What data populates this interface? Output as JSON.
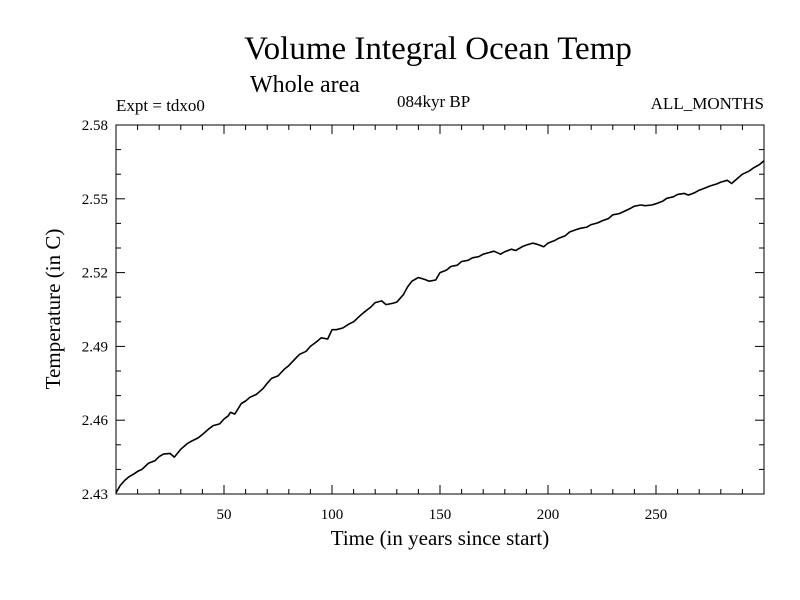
{
  "header": {
    "title": "Volume Integral Ocean Temp",
    "subtitle": "Whole area",
    "experiment": "Expt = tdxo0",
    "period": "084kyr BP",
    "months": "ALL_MONTHS"
  },
  "chart_data": {
    "type": "line",
    "title": "Volume Integral Ocean Temp",
    "subtitle": "Whole area",
    "xlabel": "Time (in years since start)",
    "ylabel": "Temperature (in C)",
    "xlim": [
      0,
      300
    ],
    "ylim": [
      2.43,
      2.58
    ],
    "x_ticks": [
      50,
      100,
      150,
      200,
      250
    ],
    "y_ticks": [
      2.43,
      2.46,
      2.49,
      2.52,
      2.55,
      2.58
    ],
    "y_tick_labels": [
      "2.43",
      "2.46",
      "2.49",
      "2.52",
      "2.55",
      "2.58"
    ],
    "grid": false,
    "line_color": "#000000",
    "series": [
      {
        "x": [
          0,
          2,
          4,
          6,
          8,
          10,
          12,
          15,
          18,
          20,
          22,
          25,
          27,
          30,
          33,
          35,
          38,
          40,
          43,
          45,
          48,
          50,
          52,
          53,
          55,
          58,
          60,
          62,
          65,
          68,
          70,
          72,
          75,
          78,
          80,
          83,
          85,
          88,
          90,
          93,
          95,
          98,
          100,
          102,
          105,
          108,
          110,
          113,
          115,
          118,
          120,
          123,
          125,
          128,
          130,
          133,
          135,
          137,
          140,
          143,
          145,
          148,
          150,
          153,
          155,
          158,
          160,
          163,
          165,
          168,
          170,
          173,
          175,
          178,
          180,
          183,
          185,
          188,
          190,
          193,
          195,
          198,
          200,
          203,
          205,
          208,
          210,
          213,
          215,
          218,
          220,
          223,
          225,
          228,
          230,
          233,
          235,
          238,
          240,
          243,
          245,
          248,
          250,
          253,
          255,
          258,
          260,
          263,
          265,
          268,
          270,
          273,
          275,
          278,
          280,
          283,
          285,
          288,
          290,
          293,
          295,
          298,
          300
        ],
        "values": [
          2.4305,
          2.4335,
          2.4355,
          2.437,
          2.438,
          2.4392,
          2.44,
          2.4425,
          2.4435,
          2.4452,
          2.4462,
          2.4465,
          2.445,
          2.4482,
          2.4505,
          2.4515,
          2.4528,
          2.4542,
          2.4565,
          2.4578,
          2.4585,
          2.4605,
          2.4618,
          2.4632,
          2.4625,
          2.4668,
          2.4678,
          2.4693,
          2.4705,
          2.4728,
          2.475,
          2.477,
          2.478,
          2.4808,
          2.4822,
          2.485,
          2.4868,
          2.488,
          2.49,
          2.492,
          2.4935,
          2.493,
          2.4968,
          2.4968,
          2.4975,
          2.4992,
          2.5,
          2.5025,
          2.504,
          2.506,
          2.5078,
          2.5085,
          2.507,
          2.5075,
          2.508,
          2.511,
          2.5142,
          2.5165,
          2.518,
          2.5172,
          2.5165,
          2.517,
          2.52,
          2.521,
          2.5225,
          2.523,
          2.5245,
          2.525,
          2.526,
          2.5265,
          2.5275,
          2.5282,
          2.5287,
          2.5275,
          2.5285,
          2.5295,
          2.529,
          2.5305,
          2.5312,
          2.532,
          2.5315,
          2.5305,
          2.532,
          2.533,
          2.534,
          2.535,
          2.5365,
          2.5375,
          2.538,
          2.5385,
          2.5395,
          2.5402,
          2.541,
          2.542,
          2.5435,
          2.544,
          2.5448,
          2.546,
          2.547,
          2.5475,
          2.5472,
          2.5475,
          2.548,
          2.549,
          2.5502,
          2.5508,
          2.5518,
          2.5522,
          2.5515,
          2.5525,
          2.5535,
          2.5545,
          2.5552,
          2.556,
          2.5568,
          2.5575,
          2.5562,
          2.5585,
          2.56,
          2.5612,
          2.5625,
          2.564,
          2.5655
        ]
      }
    ]
  }
}
